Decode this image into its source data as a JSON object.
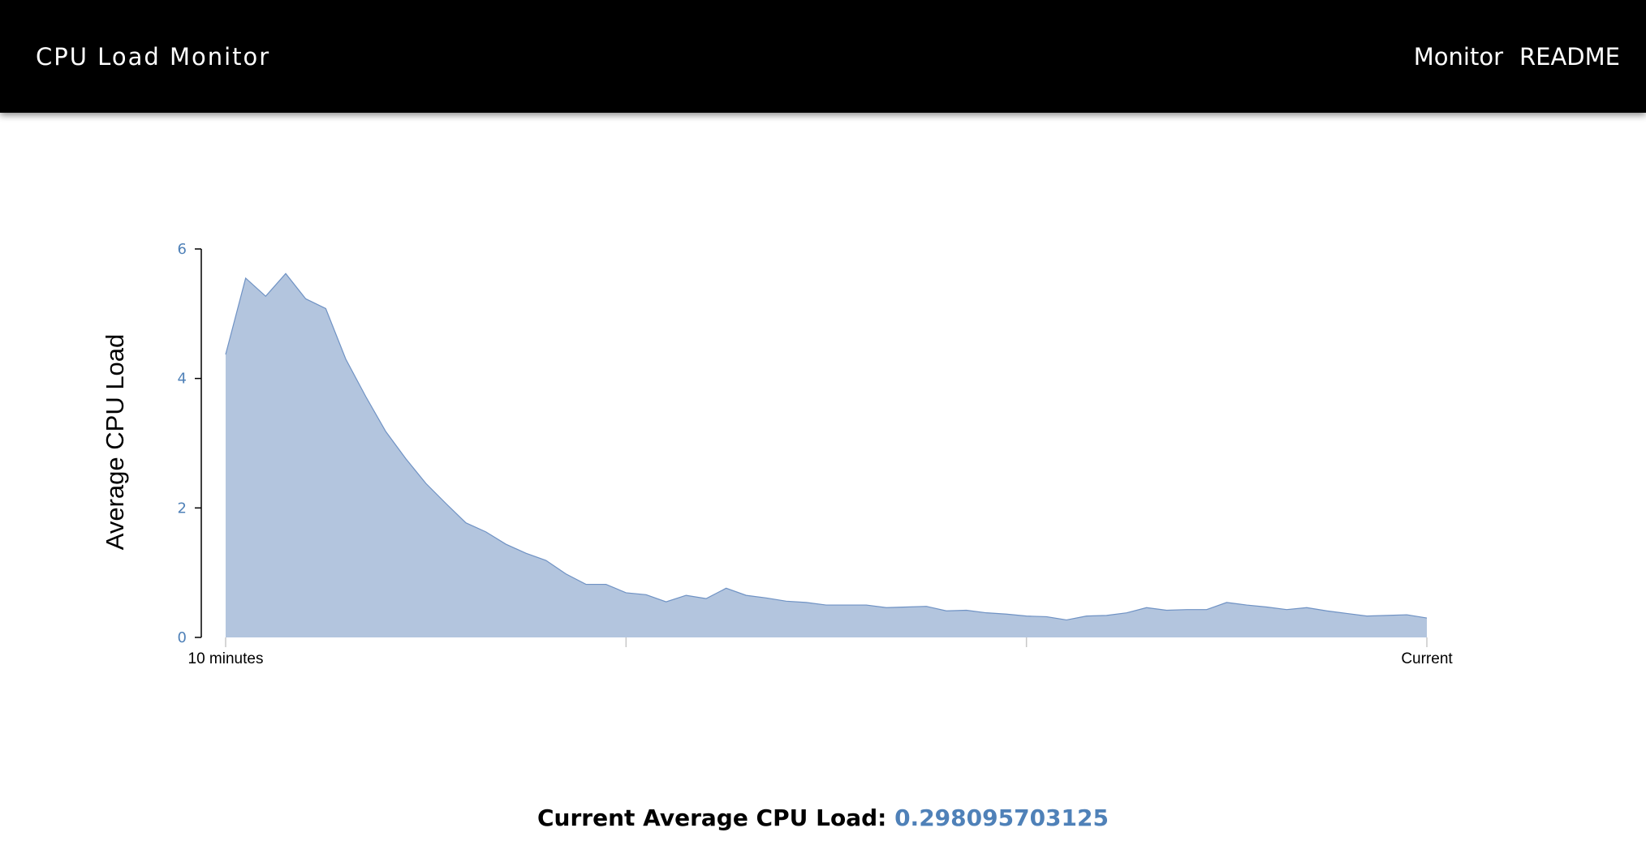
{
  "header": {
    "title": "CPU Load Monitor",
    "nav": [
      {
        "label": "Monitor"
      },
      {
        "label": "README"
      }
    ]
  },
  "colors": {
    "header_bg": "#000000",
    "area_fill": "#b3c5de",
    "area_stroke": "#6f92c4",
    "tick_label": "#4f81b8",
    "value_text": "#4f81b8"
  },
  "chart_data": {
    "type": "area",
    "ylabel": "Average CPU Load",
    "ylim": [
      0,
      6
    ],
    "yticks": [
      0,
      2,
      4,
      6
    ],
    "x_start_label": "10 minutes",
    "x_end_label": "Current",
    "x_minor_ticks": 4,
    "values": [
      4.37,
      5.55,
      5.27,
      5.62,
      5.23,
      5.08,
      4.3,
      3.72,
      3.18,
      2.76,
      2.38,
      2.07,
      1.77,
      1.63,
      1.44,
      1.3,
      1.19,
      0.98,
      0.82,
      0.82,
      0.69,
      0.66,
      0.55,
      0.65,
      0.6,
      0.76,
      0.65,
      0.61,
      0.56,
      0.54,
      0.5,
      0.5,
      0.5,
      0.46,
      0.47,
      0.48,
      0.41,
      0.42,
      0.38,
      0.36,
      0.33,
      0.32,
      0.27,
      0.33,
      0.34,
      0.38,
      0.46,
      0.42,
      0.43,
      0.43,
      0.54,
      0.5,
      0.47,
      0.43,
      0.46,
      0.41,
      0.37,
      0.33,
      0.34,
      0.35,
      0.3
    ]
  },
  "readout": {
    "label": "Current Average CPU Load:",
    "value": "0.298095703125"
  }
}
